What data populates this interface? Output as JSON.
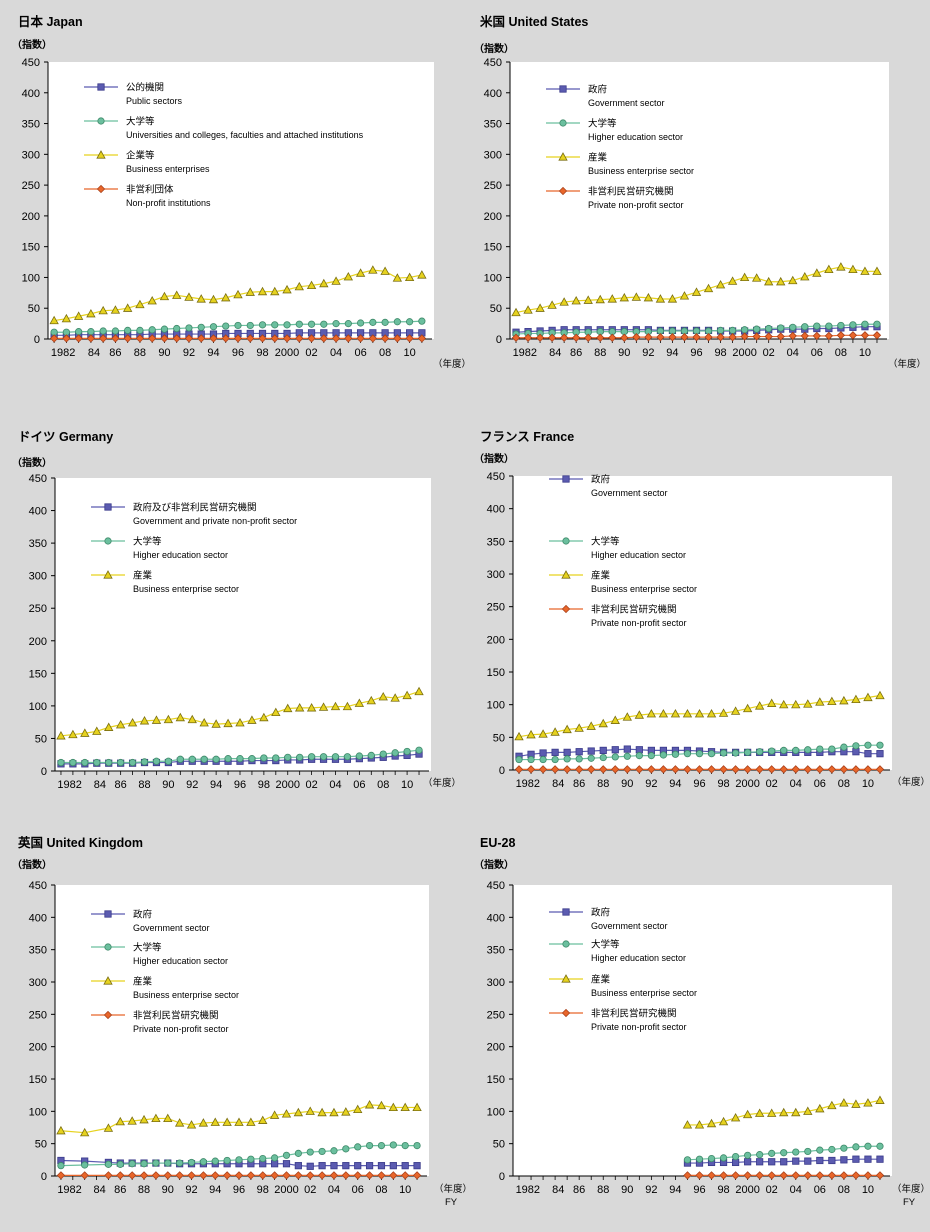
{
  "figure": {
    "ylabel": "（指数）",
    "xlabel": "（年度）",
    "xlabel_fy": "FY",
    "yticks": [
      "0",
      "50",
      "100",
      "150",
      "200",
      "250",
      "300",
      "350",
      "400",
      "450"
    ],
    "xticks": [
      "1982",
      "84",
      "86",
      "88",
      "90",
      "92",
      "94",
      "96",
      "98",
      "2000",
      "02",
      "04",
      "06",
      "08",
      "10"
    ]
  },
  "colors": {
    "background": "#d9d9d9",
    "plot_bg": "#ffffff",
    "public": "#5b5bb0",
    "university": "#6bbf9e",
    "business": "#e6d21e",
    "nonprofit": "#e8662a"
  },
  "chart_data": [
    {
      "type": "line",
      "title": "日本 Japan",
      "ylim": [
        0,
        450
      ],
      "x": [
        1981,
        1982,
        1983,
        1984,
        1985,
        1986,
        1987,
        1988,
        1989,
        1990,
        1991,
        1992,
        1993,
        1994,
        1995,
        1996,
        1997,
        1998,
        1999,
        2000,
        2001,
        2002,
        2003,
        2004,
        2005,
        2006,
        2007,
        2008,
        2009,
        2010,
        2011
      ],
      "legend_position": "top-left",
      "series": [
        {
          "name": "公的機関",
          "name_en": "Public sectors",
          "marker": "square",
          "color": "#5b5bb0",
          "values": [
            6,
            6,
            7,
            7,
            7,
            7,
            7,
            7,
            8,
            8,
            8,
            8,
            8,
            8,
            9,
            9,
            9,
            9,
            9,
            9,
            10,
            10,
            10,
            10,
            10,
            10,
            10,
            10,
            10,
            10,
            10
          ]
        },
        {
          "name": "大学等",
          "name_en": "Universities and colleges, faculties and attached institutions",
          "marker": "circle",
          "color": "#6bbf9e",
          "values": [
            11,
            11,
            12,
            12,
            13,
            13,
            14,
            14,
            15,
            16,
            17,
            18,
            19,
            20,
            21,
            22,
            22,
            23,
            23,
            23,
            24,
            24,
            24,
            25,
            25,
            26,
            27,
            27,
            28,
            28,
            29
          ]
        },
        {
          "name": "企業等",
          "name_en": "Business enterprises",
          "marker": "triangle",
          "color": "#e6d21e",
          "values": [
            30,
            33,
            37,
            41,
            46,
            47,
            50,
            56,
            62,
            69,
            71,
            68,
            65,
            64,
            67,
            72,
            76,
            77,
            77,
            80,
            85,
            87,
            90,
            94,
            101,
            107,
            112,
            110,
            99,
            100,
            104
          ]
        },
        {
          "name": "非営利団体",
          "name_en": "Non-profit institutions",
          "marker": "diamond",
          "color": "#e8662a",
          "values": [
            1,
            1,
            1,
            1,
            1,
            1,
            1,
            1,
            1,
            1,
            1,
            1,
            1,
            1,
            1,
            1,
            1,
            1,
            1,
            1,
            1,
            1,
            1,
            1,
            1,
            1,
            1,
            1,
            1,
            1,
            1
          ]
        }
      ]
    },
    {
      "type": "line",
      "title": "米国 United States",
      "ylim": [
        0,
        450
      ],
      "x": [
        1981,
        1982,
        1983,
        1984,
        1985,
        1986,
        1987,
        1988,
        1989,
        1990,
        1991,
        1992,
        1993,
        1994,
        1995,
        1996,
        1997,
        1998,
        1999,
        2000,
        2001,
        2002,
        2003,
        2004,
        2005,
        2006,
        2007,
        2008,
        2009,
        2010,
        2011
      ],
      "legend_position": "top-left",
      "series": [
        {
          "name": "政府",
          "name_en": "Government sector",
          "marker": "square",
          "color": "#5b5bb0",
          "values": [
            11,
            12,
            13,
            14,
            15,
            15,
            15,
            15,
            15,
            15,
            15,
            15,
            14,
            14,
            14,
            14,
            14,
            13,
            13,
            13,
            14,
            15,
            16,
            16,
            16,
            17,
            17,
            18,
            19,
            20,
            20
          ]
        },
        {
          "name": "大学等",
          "name_en": "Higher education sector",
          "marker": "circle",
          "color": "#6bbf9e",
          "values": [
            8,
            9,
            9,
            10,
            10,
            11,
            11,
            12,
            12,
            12,
            12,
            12,
            13,
            13,
            13,
            13,
            13,
            14,
            14,
            15,
            16,
            17,
            18,
            19,
            20,
            21,
            21,
            22,
            23,
            24,
            24
          ]
        },
        {
          "name": "産業",
          "name_en": "Business enterprise sector",
          "marker": "triangle",
          "color": "#e6d21e",
          "values": [
            43,
            47,
            50,
            55,
            60,
            62,
            63,
            64,
            65,
            67,
            68,
            67,
            65,
            65,
            70,
            76,
            82,
            88,
            94,
            100,
            99,
            93,
            93,
            95,
            101,
            107,
            113,
            117,
            113,
            110,
            110
          ]
        },
        {
          "name": "非営利民営研究機関",
          "name_en": "Private non-profit sector",
          "marker": "diamond",
          "color": "#e8662a",
          "values": [
            2,
            2,
            2,
            2,
            2,
            2,
            2,
            2,
            2,
            2,
            3,
            3,
            3,
            3,
            3,
            3,
            3,
            3,
            3,
            4,
            4,
            4,
            4,
            5,
            5,
            5,
            5,
            6,
            6,
            6,
            6
          ]
        }
      ]
    },
    {
      "type": "line",
      "title": "ドイツ Germany",
      "ylim": [
        0,
        450
      ],
      "x": [
        1981,
        1982,
        1983,
        1984,
        1985,
        1986,
        1987,
        1988,
        1989,
        1990,
        1991,
        1992,
        1993,
        1994,
        1995,
        1996,
        1997,
        1998,
        1999,
        2000,
        2001,
        2002,
        2003,
        2004,
        2005,
        2006,
        2007,
        2008,
        2009,
        2010,
        2011
      ],
      "legend_position": "top-left",
      "series": [
        {
          "name": "政府及び非営利民営研究機関",
          "name_en": "Government and  private non-profit sector",
          "marker": "square",
          "color": "#5b5bb0",
          "values": [
            11,
            11,
            11,
            12,
            12,
            12,
            12,
            13,
            13,
            13,
            15,
            15,
            15,
            15,
            15,
            15,
            16,
            16,
            16,
            17,
            17,
            18,
            18,
            18,
            18,
            19,
            20,
            21,
            23,
            24,
            26
          ]
        },
        {
          "name": "大学等",
          "name_en": "Higher education sector",
          "marker": "circle",
          "color": "#6bbf9e",
          "values": [
            13,
            13,
            13,
            13,
            13,
            13,
            13,
            14,
            15,
            15,
            18,
            18,
            18,
            18,
            19,
            19,
            19,
            20,
            20,
            21,
            21,
            22,
            22,
            22,
            22,
            23,
            24,
            26,
            28,
            30,
            32
          ]
        },
        {
          "name": "産業",
          "name_en": "Business enterprise sector",
          "marker": "triangle",
          "color": "#e6d21e",
          "values": [
            54,
            56,
            58,
            61,
            67,
            71,
            74,
            77,
            78,
            79,
            82,
            79,
            74,
            72,
            73,
            74,
            78,
            82,
            90,
            96,
            97,
            97,
            98,
            99,
            99,
            104,
            108,
            114,
            112,
            116,
            122
          ]
        }
      ]
    },
    {
      "type": "line",
      "title": "フランス France",
      "ylim": [
        0,
        450
      ],
      "x": [
        1981,
        1982,
        1983,
        1984,
        1985,
        1986,
        1987,
        1988,
        1989,
        1990,
        1991,
        1992,
        1993,
        1994,
        1995,
        1996,
        1997,
        1998,
        1999,
        2000,
        2001,
        2002,
        2003,
        2004,
        2005,
        2006,
        2007,
        2008,
        2009,
        2010,
        2011
      ],
      "legend_position": "top-left",
      "series": [
        {
          "name": "政府",
          "name_en": "Government sector",
          "marker": "square",
          "color": "#5b5bb0",
          "values": [
            21,
            24,
            26,
            27,
            27,
            28,
            29,
            30,
            31,
            32,
            31,
            30,
            30,
            30,
            30,
            29,
            28,
            27,
            27,
            27,
            27,
            27,
            27,
            27,
            27,
            27,
            28,
            28,
            28,
            25,
            25
          ]
        },
        {
          "name": "大学等",
          "name_en": "Higher education sector",
          "marker": "circle",
          "color": "#6bbf9e",
          "values": [
            16,
            16,
            16,
            16,
            17,
            17,
            18,
            19,
            20,
            21,
            22,
            22,
            23,
            24,
            25,
            25,
            25,
            26,
            26,
            27,
            28,
            29,
            30,
            30,
            31,
            32,
            32,
            35,
            37,
            38,
            38
          ]
        },
        {
          "name": "産業",
          "name_en": "Business enterprise sector",
          "marker": "triangle",
          "color": "#e6d21e",
          "values": [
            51,
            54,
            55,
            58,
            62,
            64,
            67,
            71,
            76,
            81,
            84,
            86,
            86,
            86,
            86,
            86,
            86,
            87,
            90,
            94,
            98,
            102,
            100,
            100,
            101,
            104,
            105,
            106,
            108,
            111,
            114
          ]
        },
        {
          "name": "非営利民営研究機関",
          "name_en": "Private non-profit sector",
          "marker": "diamond",
          "color": "#e8662a",
          "values": [
            1,
            1,
            1,
            1,
            1,
            1,
            1,
            1,
            1,
            1,
            1,
            1,
            1,
            1,
            1,
            1,
            1,
            1,
            1,
            1,
            1,
            1,
            1,
            1,
            1,
            1,
            1,
            1,
            1,
            1,
            1
          ]
        }
      ]
    },
    {
      "type": "line",
      "title": "英国 United Kingdom",
      "ylim": [
        0,
        450
      ],
      "x": [
        1981,
        1983,
        1985,
        1986,
        1987,
        1988,
        1989,
        1990,
        1991,
        1992,
        1993,
        1994,
        1995,
        1996,
        1997,
        1998,
        1999,
        2000,
        2001,
        2002,
        2003,
        2004,
        2005,
        2006,
        2007,
        2008,
        2009,
        2010,
        2011
      ],
      "legend_position": "top-left",
      "series": [
        {
          "name": "政府",
          "name_en": "Government sector",
          "marker": "square",
          "color": "#5b5bb0",
          "values": [
            24,
            23,
            21,
            20,
            20,
            20,
            20,
            20,
            19,
            19,
            19,
            19,
            19,
            19,
            19,
            19,
            19,
            19,
            16,
            15,
            16,
            16,
            16,
            16,
            16,
            16,
            16,
            16,
            16
          ]
        },
        {
          "name": "大学等",
          "name_en": "Higher education sector",
          "marker": "circle",
          "color": "#6bbf9e",
          "values": [
            16,
            17,
            18,
            18,
            19,
            19,
            20,
            20,
            20,
            21,
            22,
            23,
            24,
            25,
            26,
            27,
            28,
            32,
            35,
            37,
            38,
            39,
            42,
            45,
            47,
            47,
            48,
            47,
            47
          ]
        },
        {
          "name": "産業",
          "name_en": "Business enterprise sector",
          "marker": "triangle",
          "color": "#e6d21e",
          "values": [
            70,
            67,
            74,
            84,
            85,
            87,
            89,
            89,
            82,
            79,
            82,
            83,
            83,
            83,
            83,
            86,
            94,
            96,
            98,
            100,
            98,
            98,
            99,
            103,
            110,
            109,
            106,
            106,
            106
          ]
        },
        {
          "name": "非営利民営研究機関",
          "name_en": "Private non-profit sector",
          "marker": "diamond",
          "color": "#e8662a",
          "values": [
            1,
            1,
            1,
            1,
            1,
            1,
            1,
            1,
            1,
            1,
            1,
            1,
            1,
            1,
            1,
            1,
            1,
            1,
            1,
            1,
            1,
            1,
            1,
            1,
            1,
            1,
            1,
            1,
            1
          ]
        }
      ]
    },
    {
      "type": "line",
      "title": "EU-28",
      "ylim": [
        0,
        450
      ],
      "x": [
        1995,
        1996,
        1997,
        1998,
        1999,
        2000,
        2001,
        2002,
        2003,
        2004,
        2005,
        2006,
        2007,
        2008,
        2009,
        2010,
        2011
      ],
      "legend_position": "top-left",
      "series": [
        {
          "name": "政府",
          "name_en": "Government sector",
          "marker": "square",
          "color": "#5b5bb0",
          "values": [
            20,
            20,
            21,
            21,
            21,
            22,
            22,
            22,
            22,
            23,
            23,
            24,
            24,
            25,
            26,
            26,
            26
          ]
        },
        {
          "name": "大学等",
          "name_en": "Higher education sector",
          "marker": "circle",
          "color": "#6bbf9e",
          "values": [
            25,
            26,
            27,
            28,
            30,
            32,
            33,
            35,
            36,
            37,
            38,
            40,
            41,
            43,
            45,
            46,
            46
          ]
        },
        {
          "name": "産業",
          "name_en": "Business enterprise sector",
          "marker": "triangle",
          "color": "#e6d21e",
          "values": [
            79,
            79,
            81,
            84,
            90,
            95,
            97,
            97,
            98,
            98,
            100,
            104,
            109,
            113,
            111,
            113,
            117
          ]
        },
        {
          "name": "非営利民営研究機関",
          "name_en": "Private non-profit sector",
          "marker": "diamond",
          "color": "#e8662a",
          "values": [
            1,
            1,
            1,
            1,
            1,
            1,
            1,
            1,
            1,
            1,
            1,
            1,
            1,
            1,
            1,
            1,
            1
          ]
        }
      ]
    }
  ]
}
